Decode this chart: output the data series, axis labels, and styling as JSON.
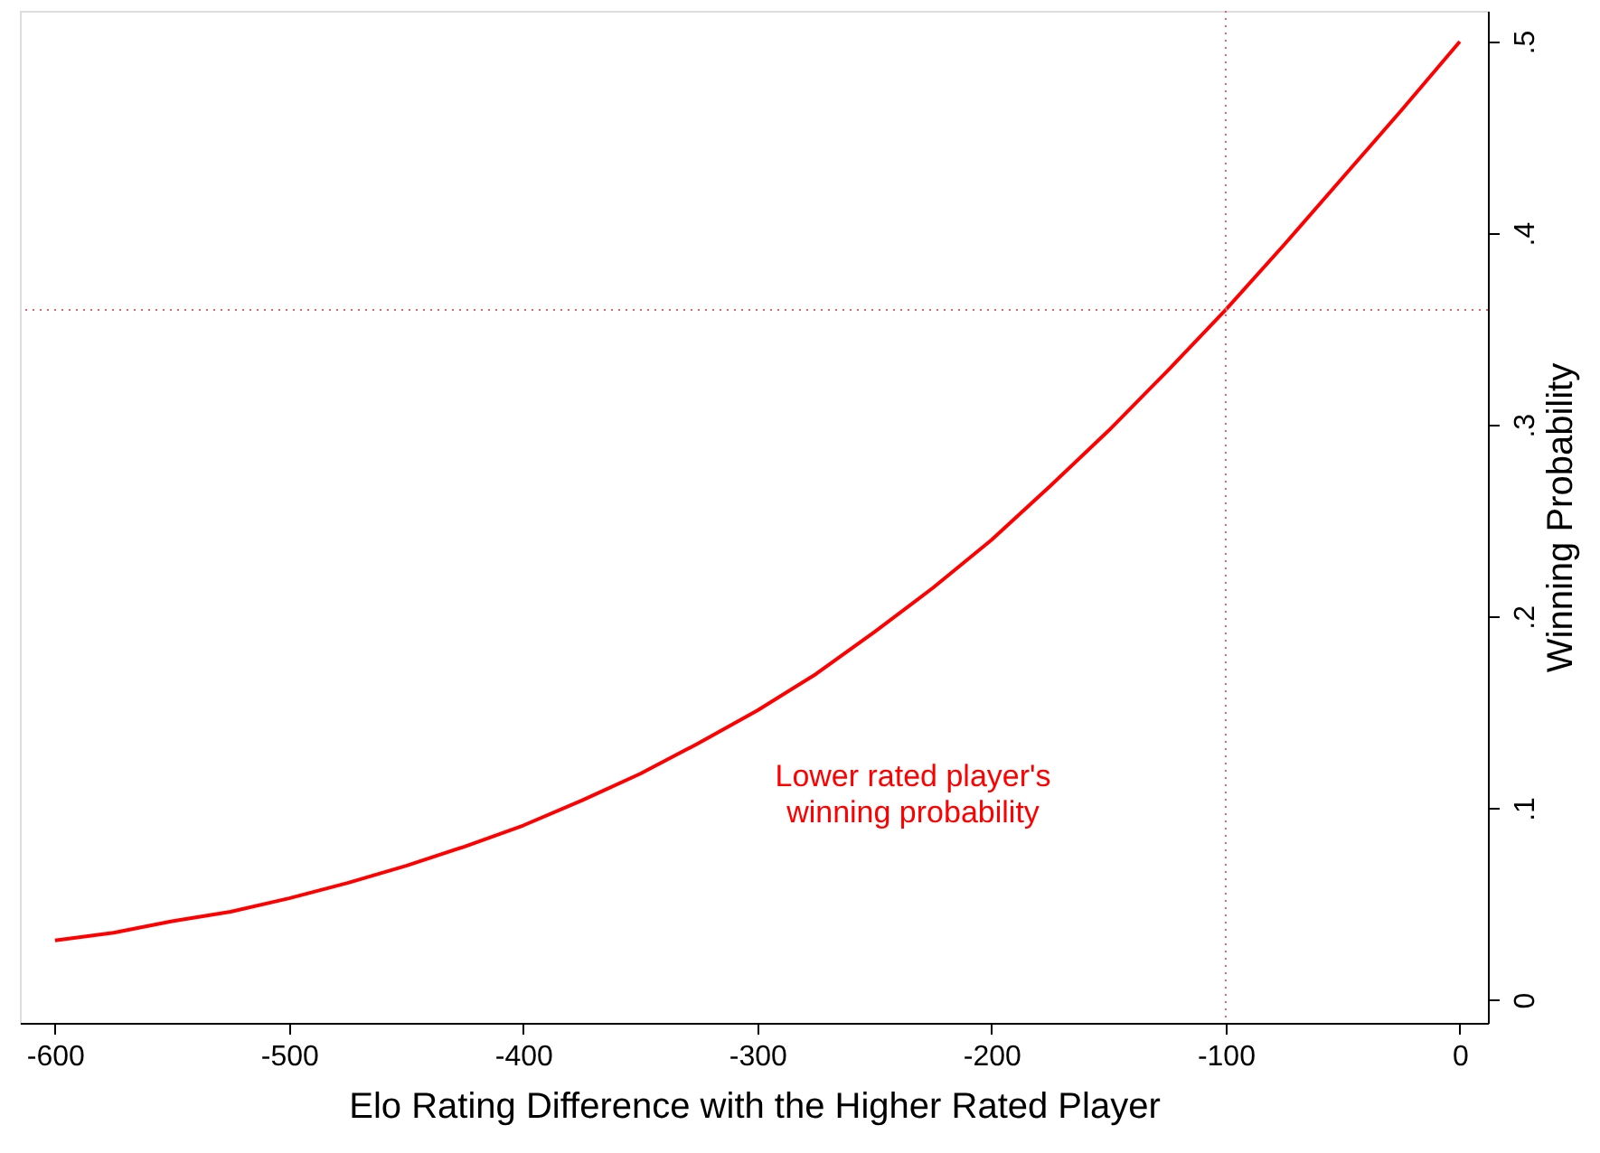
{
  "chart_data": {
    "type": "line",
    "xlabel": "Elo Rating Difference with the Higher Rated Player",
    "ylabel": "Winning Probability",
    "x": [
      -600,
      -575,
      -550,
      -525,
      -500,
      -475,
      -450,
      -425,
      -400,
      -375,
      -350,
      -325,
      -300,
      -275,
      -250,
      -225,
      -200,
      -175,
      -150,
      -125,
      -100,
      -75,
      -50,
      -25,
      0
    ],
    "series": [
      {
        "color": "#ff0000",
        "values": [
          0.031,
          0.035,
          0.041,
          0.046,
          0.053,
          0.061,
          0.07,
          0.08,
          0.091,
          0.104,
          0.118,
          0.134,
          0.151,
          0.17,
          0.192,
          0.215,
          0.24,
          0.268,
          0.297,
          0.328,
          0.36,
          0.394,
          0.429,
          0.464,
          0.5
        ]
      }
    ],
    "xlim": [
      -615,
      12
    ],
    "ylim": [
      -0.012,
      0.516
    ],
    "xticks": [
      -600,
      -500,
      -400,
      -300,
      -200,
      -100,
      0
    ],
    "yticks": [
      0,
      {
        "value": 0.1,
        "label": ".1"
      },
      {
        "value": 0.2,
        "label": ".2"
      },
      {
        "value": 0.3,
        "label": ".3"
      },
      {
        "value": 0.4,
        "label": ".4"
      },
      {
        "value": 0.5,
        "label": ".5"
      }
    ],
    "ref_lines": [
      {
        "axis": "y",
        "value": 0.36,
        "color": "#e06070",
        "line_style": "dotted"
      },
      {
        "axis": "x",
        "value": -100,
        "color": "#e06070",
        "line_style": "dotted"
      }
    ],
    "annotations": [
      "Lower rated player's\nwinning probability"
    ],
    "grid": false,
    "legend": false,
    "line_style": "solid",
    "marker": "none"
  }
}
